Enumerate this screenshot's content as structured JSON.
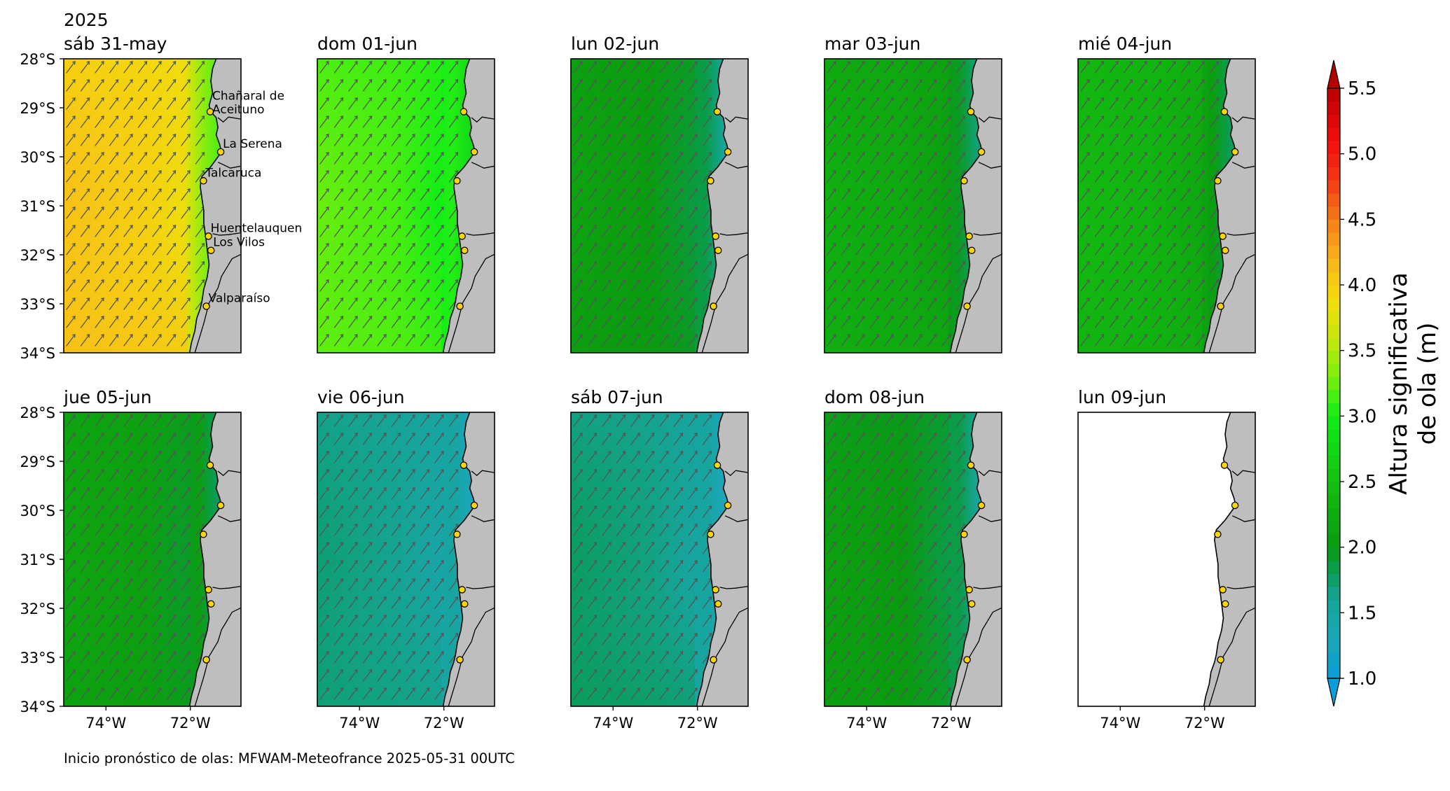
{
  "caption": "Inicio pronóstico de olas: MFWAM-Meteofrance 2025-05-31 00UTC",
  "colors": {
    "land": "#bebebe",
    "coastline": "#000000",
    "arrow": "#555555",
    "city_fill": "#ffd700",
    "city_edge": "#000000"
  },
  "chart_data": {
    "type": "heatmap",
    "variable": "Altura significativa de ola (m)",
    "year_label": "2025",
    "colorbar": {
      "label_lines": [
        "Altura significativa",
        "de ola (m)"
      ],
      "ticks": [
        "1.0",
        "1.5",
        "2.0",
        "2.5",
        "3.0",
        "3.5",
        "4.0",
        "4.5",
        "5.0",
        "5.5"
      ],
      "range": [
        1.0,
        5.5
      ],
      "extend": "both",
      "stops": [
        {
          "v": 1.0,
          "color": "#0a9ed8"
        },
        {
          "v": 1.3,
          "color": "#1ba6b8"
        },
        {
          "v": 1.6,
          "color": "#16a59a"
        },
        {
          "v": 1.8,
          "color": "#0a9c58"
        },
        {
          "v": 2.0,
          "color": "#0a9a10"
        },
        {
          "v": 2.5,
          "color": "#14c010"
        },
        {
          "v": 3.0,
          "color": "#10ee16"
        },
        {
          "v": 3.3,
          "color": "#7cee0e"
        },
        {
          "v": 3.6,
          "color": "#c8e80e"
        },
        {
          "v": 3.9,
          "color": "#f4dc0c"
        },
        {
          "v": 4.2,
          "color": "#f8b41c"
        },
        {
          "v": 4.5,
          "color": "#f47e18"
        },
        {
          "v": 4.8,
          "color": "#f43814"
        },
        {
          "v": 5.1,
          "color": "#f20e0e"
        },
        {
          "v": 5.5,
          "color": "#bb0000"
        }
      ],
      "under_color": "#0a9ed8",
      "over_color": "#b00000"
    },
    "lat_ticks": [
      "28°S",
      "29°S",
      "30°S",
      "31°S",
      "32°S",
      "33°S",
      "34°S"
    ],
    "lon_ticks": [
      "74°W",
      "72°W"
    ],
    "extent": {
      "lon": [
        -75.0,
        -70.8
      ],
      "lat": [
        -34.0,
        -28.0
      ]
    },
    "wave_direction": "from the southwest (arrows pointing northeast)",
    "cities": [
      {
        "name": "Chañaral de Aceituno",
        "lat": -29.08,
        "lon": -71.53
      },
      {
        "name": "La Serena",
        "lat": -29.9,
        "lon": -71.28
      },
      {
        "name": "Talcaruca",
        "lat": -30.49,
        "lon": -71.69
      },
      {
        "name": "Huentelauquen",
        "lat": -31.62,
        "lon": -71.57
      },
      {
        "name": "Los Vilos",
        "lat": -31.91,
        "lon": -71.51
      },
      {
        "name": "Valparaíso",
        "lat": -33.05,
        "lon": -71.62
      }
    ],
    "panels": [
      {
        "title": "sáb 31-may",
        "hs_offshore_north": 3.9,
        "hs_offshore_south": 4.1,
        "hs_coast": 3.2,
        "data": true
      },
      {
        "title": "dom 01-jun",
        "hs_offshore_north": 3.1,
        "hs_offshore_south": 3.2,
        "hs_coast": 2.8,
        "data": true
      },
      {
        "title": "lun 02-jun",
        "hs_offshore_north": 2.05,
        "hs_offshore_south": 2.0,
        "hs_coast": 1.6,
        "data": true
      },
      {
        "title": "mar 03-jun",
        "hs_offshore_north": 2.15,
        "hs_offshore_south": 2.25,
        "hs_coast": 1.7,
        "data": true
      },
      {
        "title": "mié 04-jun",
        "hs_offshore_north": 2.35,
        "hs_offshore_south": 2.3,
        "hs_coast": 1.8,
        "data": true
      },
      {
        "title": "jue 05-jun",
        "hs_offshore_north": 2.1,
        "hs_offshore_south": 2.05,
        "hs_coast": 1.8,
        "data": true
      },
      {
        "title": "vie 06-jun",
        "hs_offshore_north": 1.55,
        "hs_offshore_south": 1.7,
        "hs_coast": 1.3,
        "data": true
      },
      {
        "title": "sáb 07-jun",
        "hs_offshore_north": 1.55,
        "hs_offshore_south": 1.8,
        "hs_coast": 1.3,
        "data": true
      },
      {
        "title": "dom 08-jun",
        "hs_offshore_north": 1.95,
        "hs_offshore_south": 2.05,
        "hs_coast": 1.6,
        "data": true
      },
      {
        "title": "lun 09-jun",
        "data": false
      }
    ]
  }
}
